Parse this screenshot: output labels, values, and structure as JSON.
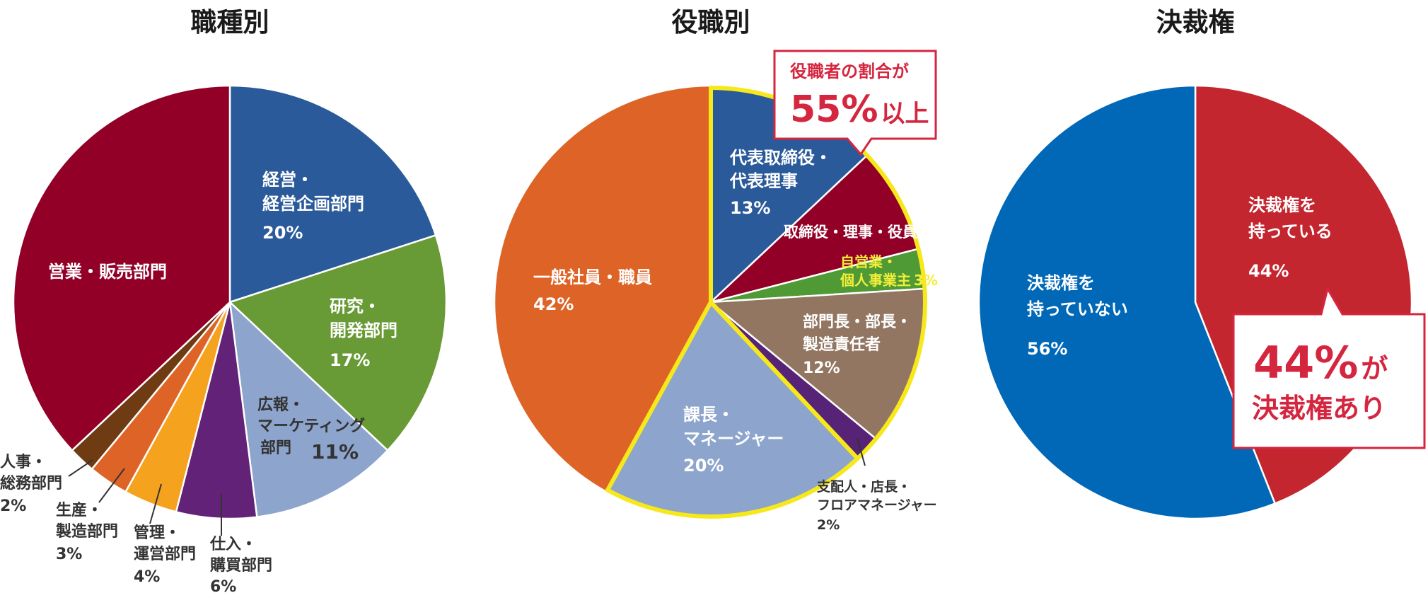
{
  "chart_data": [
    {
      "type": "pie",
      "title": "職種別",
      "slices": [
        {
          "label": [
            "経営・",
            "経営企画部門"
          ],
          "value": 20,
          "value_label": "20%",
          "color": "#2a5a9a"
        },
        {
          "label": [
            "研究・",
            "開発部門"
          ],
          "value": 17,
          "value_label": "17%",
          "color": "#689a35"
        },
        {
          "label": [
            "広報・",
            "マーケティング",
            "部門"
          ],
          "value": 11,
          "value_label": "11%",
          "color": "#8da4cc"
        },
        {
          "label": [
            "仕入・",
            "購買部門"
          ],
          "value": 6,
          "value_label": "6%",
          "color": "#622277"
        },
        {
          "label": [
            "管理・",
            "運営部門"
          ],
          "value": 4,
          "value_label": "4%",
          "color": "#f5a21e"
        },
        {
          "label": [
            "生産・",
            "製造部門"
          ],
          "value": 3,
          "value_label": "3%",
          "color": "#dd6426"
        },
        {
          "label": [
            "人事・",
            "総務部門"
          ],
          "value": 2,
          "value_label": "2%",
          "color": "#6e3b13"
        },
        {
          "label": [
            "営業・販売部門"
          ],
          "value": 37,
          "value_label": "37%",
          "color": "#920028"
        }
      ]
    },
    {
      "type": "pie",
      "title": "役職別",
      "slices": [
        {
          "label": [
            "代表取締役・",
            "代表理事"
          ],
          "value": 13,
          "value_label": "13%",
          "color": "#2a5a9a"
        },
        {
          "label": [
            "取締役・理事・役員"
          ],
          "value": 8,
          "value_label": "8%",
          "color": "#920028"
        },
        {
          "label": [
            "自営業・",
            "個人事業主"
          ],
          "value": 3,
          "value_label": "3%",
          "color": "#4f9a34"
        },
        {
          "label": [
            "部門長・部長・",
            "製造責任者"
          ],
          "value": 12,
          "value_label": "12%",
          "color": "#927662"
        },
        {
          "label": [
            "支配人・店長・",
            "フロアマネージャー"
          ],
          "value": 2,
          "value_label": "2%",
          "color": "#562377"
        },
        {
          "label": [
            "課長・",
            "マネージャー"
          ],
          "value": 20,
          "value_label": "20%",
          "color": "#8da4cc"
        },
        {
          "label": [
            "一般社員・職員"
          ],
          "value": 42,
          "value_label": "42%",
          "color": "#dd6426"
        }
      ],
      "highlight_color": "#f7e81c",
      "callout": {
        "line1": "役職者の割合が",
        "big": "55%",
        "suffix": "以上"
      }
    },
    {
      "type": "pie",
      "title": "決裁権",
      "slices": [
        {
          "label": [
            "決裁権を",
            "持っている"
          ],
          "value": 44,
          "value_label": "44%",
          "color": "#c3262f"
        },
        {
          "label": [
            "決裁権を",
            "持っていない"
          ],
          "value": 56,
          "value_label": "56%",
          "color": "#0068b7"
        }
      ],
      "callout": {
        "big": "44%",
        "suffix": "が",
        "line2": "決裁権あり"
      }
    }
  ],
  "colors": {
    "callout_border": "#d5263f",
    "title": "#1a1a1a"
  }
}
